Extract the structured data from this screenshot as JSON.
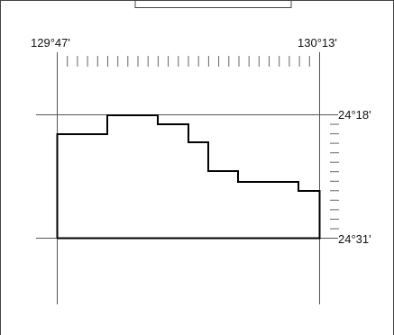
{
  "map": {
    "coordinate_labels": {
      "lon_west": "129°47'",
      "lon_east": "130°13'",
      "lat_north": "24°18'",
      "lat_south": "24°31'"
    },
    "colors": {
      "line": "#000000",
      "frame": "#555555",
      "ticks": "#666666",
      "background": "#ffffff"
    }
  }
}
